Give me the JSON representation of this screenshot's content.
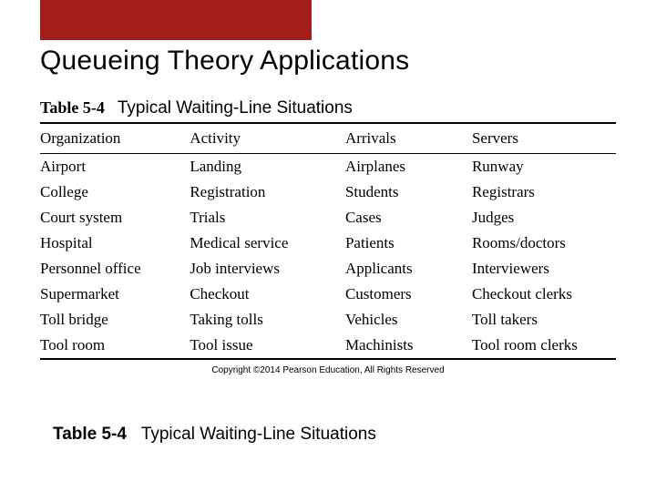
{
  "accent_color": "#a51c1c",
  "title": "Queueing Theory Applications",
  "table": {
    "number": "Table 5-4",
    "caption": "Typical Waiting-Line Situations",
    "columns": [
      "Organization",
      "Activity",
      "Arrivals",
      "Servers"
    ],
    "col_widths_pct": [
      26,
      27,
      22,
      25
    ],
    "header_fontsize": 17,
    "cell_fontsize": 17,
    "rows": [
      [
        "Airport",
        "Landing",
        "Airplanes",
        "Runway"
      ],
      [
        "College",
        "Registration",
        "Students",
        "Registrars"
      ],
      [
        "Court system",
        "Trials",
        "Cases",
        "Judges"
      ],
      [
        "Hospital",
        "Medical service",
        "Patients",
        "Rooms/doctors"
      ],
      [
        "Personnel office",
        "Job interviews",
        "Applicants",
        "Interviewers"
      ],
      [
        "Supermarket",
        "Checkout",
        "Customers",
        "Checkout clerks"
      ],
      [
        "Toll bridge",
        "Taking tolls",
        "Vehicles",
        "Toll takers"
      ],
      [
        "Tool room",
        "Tool issue",
        "Machinists",
        "Tool room clerks"
      ]
    ]
  },
  "copyright": "Copyright ©2014 Pearson Education, All Rights Reserved",
  "bottom": {
    "bold": "Table 5-4",
    "rest": "Typical Waiting-Line Situations"
  }
}
